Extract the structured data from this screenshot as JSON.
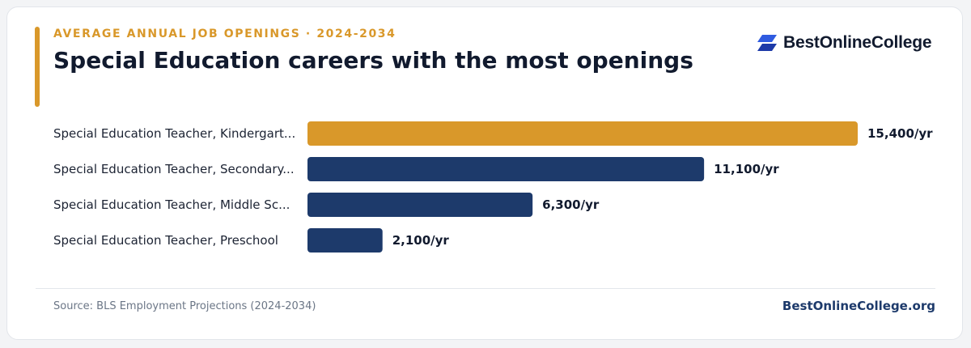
{
  "header": {
    "eyebrow": "AVERAGE ANNUAL JOB OPENINGS · 2024-2034",
    "title": "Special Education careers with the most openings"
  },
  "brand": {
    "logo_text": "BestOnlineCollege",
    "site": "BestOnlineCollege.org"
  },
  "footer": {
    "source": "Source: BLS Employment Projections (2024-2034)"
  },
  "colors": {
    "accent": "#d9982a",
    "primary_bar": "#1d3a6b",
    "logo_blue": "#2f5be0"
  },
  "chart_data": {
    "type": "bar",
    "orientation": "horizontal",
    "categories": [
      "Special Education Teacher, Kindergart...",
      "Special Education Teacher, Secondary...",
      "Special Education Teacher, Middle Sc...",
      "Special Education Teacher, Preschool"
    ],
    "values": [
      15400,
      11100,
      6300,
      2100
    ],
    "value_labels": [
      "15,400/yr",
      "11,100/yr",
      "6,300/yr",
      "2,100/yr"
    ],
    "highlight_index": 0,
    "xlim": [
      0,
      15400
    ],
    "grid": false,
    "legend": "none"
  }
}
